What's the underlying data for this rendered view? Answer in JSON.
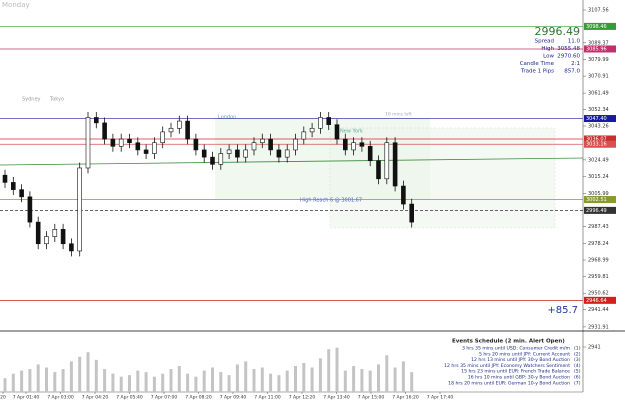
{
  "header": {
    "day": "Monday"
  },
  "price_chart": {
    "type": "candlestick",
    "ylim": [
      2930.2,
      3113.1
    ],
    "yticks": [
      3107.56,
      3089.37,
      3079.99,
      3070.91,
      3061.49,
      3052.34,
      3043.26,
      3024.49,
      3015.24,
      3005.99,
      2987.43,
      2978.24,
      2968.99,
      2959.81,
      2950.62,
      2941.44,
      2931.91
    ],
    "open": [
      3016,
      3012,
      3008,
      3004,
      2990,
      2978,
      2982,
      2986,
      2978,
      2974,
      3020,
      3048,
      3045,
      3036,
      3032,
      3036,
      3034,
      3030,
      3028,
      3034,
      3040,
      3042,
      3046,
      3036,
      3030,
      3026,
      3022,
      3028,
      3030,
      3026,
      3030,
      3034,
      3036,
      3030,
      3026,
      3030,
      3036,
      3040,
      3042,
      3048,
      3044,
      3036,
      3030,
      3034,
      3032,
      3024,
      3014,
      3034,
      3010,
      3000
    ],
    "high": [
      3019,
      3015,
      3011,
      3007,
      2993,
      2985,
      2989,
      2989,
      2981,
      3023,
      3051,
      3051,
      3048,
      3039,
      3039,
      3039,
      3037,
      3033,
      3037,
      3043,
      3045,
      3049,
      3049,
      3039,
      3033,
      3029,
      3031,
      3033,
      3033,
      3033,
      3037,
      3039,
      3039,
      3033,
      3033,
      3039,
      3043,
      3045,
      3051,
      3051,
      3047,
      3039,
      3037,
      3037,
      3035,
      3027,
      3037,
      3037,
      3013,
      3003
    ],
    "low": [
      3009,
      3005,
      3001,
      2987,
      2975,
      2975,
      2979,
      2975,
      2971,
      2971,
      3017,
      3042,
      3033,
      3029,
      3029,
      3031,
      3027,
      3025,
      3025,
      3031,
      3037,
      3039,
      3033,
      3027,
      3023,
      3019,
      3019,
      3025,
      3023,
      3023,
      3027,
      3031,
      3027,
      3023,
      3023,
      3027,
      3033,
      3037,
      3039,
      3041,
      3033,
      3027,
      3027,
      3029,
      3021,
      3011,
      3011,
      3007,
      2997,
      2987
    ],
    "close": [
      3012,
      3008,
      3004,
      2990,
      2978,
      2982,
      2986,
      2978,
      2974,
      3020,
      3048,
      3045,
      3036,
      3032,
      3036,
      3034,
      3030,
      3028,
      3034,
      3040,
      3042,
      3046,
      3036,
      3030,
      3026,
      3022,
      3028,
      3030,
      3026,
      3030,
      3034,
      3036,
      3030,
      3026,
      3030,
      3036,
      3040,
      3042,
      3048,
      3044,
      3036,
      3030,
      3034,
      3032,
      3024,
      3014,
      3034,
      3010,
      3000,
      2990
    ],
    "levels": [
      {
        "value": 3098.46,
        "label": "3098.46",
        "color": "#3a9a3a"
      },
      {
        "value": 3085.96,
        "label": "3085.96",
        "color": "#c0306a"
      },
      {
        "value": 3047.4,
        "label": "3047.40",
        "color": "#1a1aa0"
      },
      {
        "value": 3036.07,
        "label": "3036.07",
        "color": "#c83030"
      },
      {
        "value": 3033.16,
        "label": "3033.16",
        "color": "#d85050"
      },
      {
        "value": 3002.51,
        "label": "3002.51",
        "color": "#8a9a30"
      },
      {
        "value": 2996.49,
        "label": "2996.49",
        "color": "#333333"
      },
      {
        "value": 2946.64,
        "label": "2946.64",
        "color": "#d02020"
      }
    ],
    "sessions": [
      "Sydney",
      "Tokyo",
      "London",
      "New York"
    ],
    "annotation": "High Reach 6 @ 3001.67",
    "note": "10 mins left",
    "profit": "+85.7",
    "xlabels": [
      "20",
      "7 Apr 01:40",
      "7 Apr 03:00",
      "7 Apr 04:20",
      "7 Apr 05:40",
      "7 Apr 07:00",
      "7 Apr 08:20",
      "7 Apr 09:40",
      "7 Apr 11:00",
      "7 Apr 12:20",
      "7 Apr 13:40",
      "7 Apr 15:00",
      "7 Apr 16:20",
      "7 Apr 17:40"
    ]
  },
  "volume": {
    "type": "bar",
    "color": "#c4c4c4",
    "ylim": [
      0,
      2941
    ],
    "yticks": [
      2941
    ],
    "values": [
      900,
      1200,
      1400,
      1500,
      1800,
      1600,
      1300,
      1500,
      2000,
      2300,
      2600,
      2100,
      1500,
      1200,
      1000,
      1100,
      1400,
      1300,
      1000,
      1200,
      1500,
      1700,
      1200,
      1000,
      1400,
      1600,
      1300,
      1100,
      1800,
      2000,
      1500,
      1600,
      1200,
      1100,
      1400,
      1700,
      1900,
      1600,
      2200,
      2800,
      2900,
      1400,
      1700,
      1500,
      1400,
      1800,
      2400,
      1600,
      2000,
      1300
    ]
  },
  "info_panel": {
    "price": "2996.49",
    "rows": [
      [
        "Spread",
        "11.0"
      ],
      [
        "High",
        "3055.48"
      ],
      [
        "Low",
        "2970.60"
      ],
      [
        "Candle Time",
        "2:1"
      ],
      [
        "Trade 1 Pips",
        "857.0"
      ]
    ]
  },
  "events": {
    "title": "Events Schedule (2 min. Alert Open)",
    "rows": [
      [
        "3 hrs 35 mins until USD: Consumer Credit m/m",
        "(1)"
      ],
      [
        "5 hrs 20 mins until JPY: Current Account",
        "(2)"
      ],
      [
        "12 hrs 13 mins until JPY: 30-y Bond Auction",
        "(3)"
      ],
      [
        "12 hrs 35 mins until JPY: Economy Watchers Sentiment",
        "(4)"
      ],
      [
        "15 hrs 23 mins until EUR: French Trade Balance",
        "(5)"
      ],
      [
        "16 hrs 10 mins until GBP: 30-y Bond Auction",
        "(6)"
      ],
      [
        "18 hrs 20 mins until EUR: German 10-y Bond Auction",
        "(7)"
      ]
    ]
  }
}
